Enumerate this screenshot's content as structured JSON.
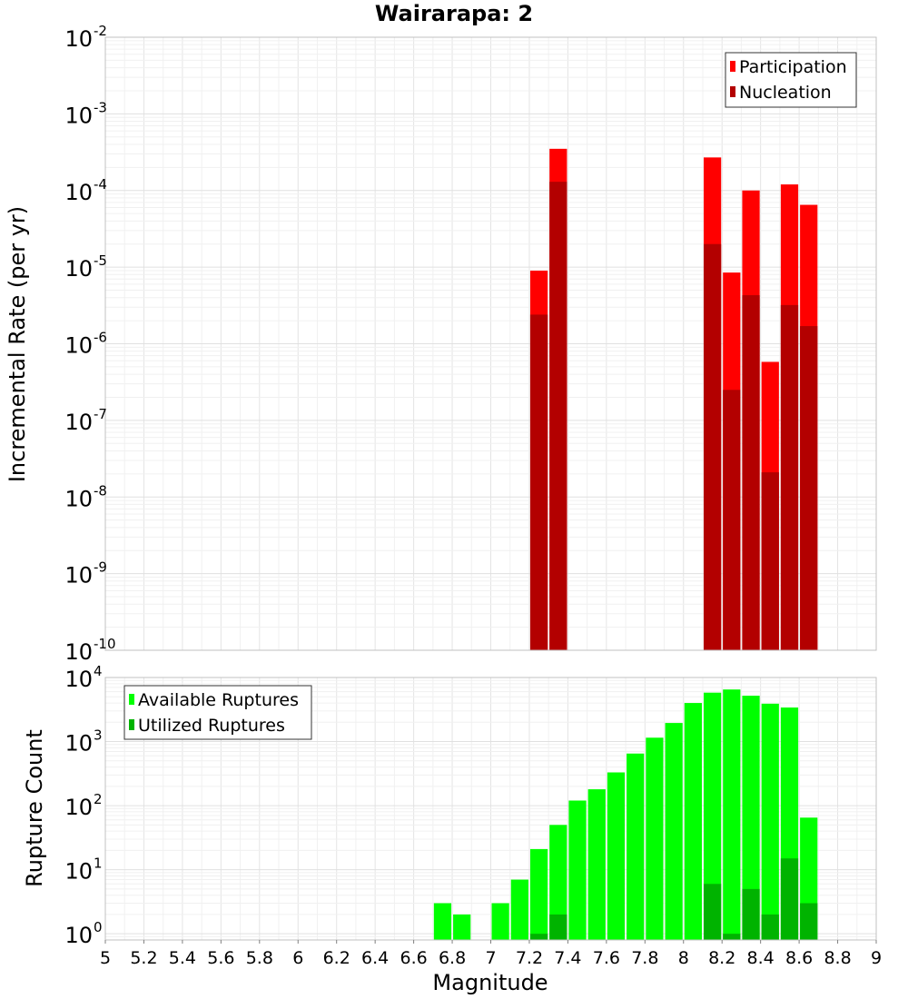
{
  "chart_data": [
    {
      "type": "bar",
      "title": "Wairarapa: 2",
      "xlabel": "",
      "ylabel": "Incremental Rate (per yr)",
      "yscale": "log",
      "ylim": [
        1e-10,
        0.01
      ],
      "xlim": [
        5,
        9
      ],
      "bar_width": 0.1,
      "legend_position": "top-right",
      "y_ticks": [
        {
          "base": "10",
          "exp": "-10",
          "value": 1e-10
        },
        {
          "base": "10",
          "exp": "-9",
          "value": 1e-09
        },
        {
          "base": "10",
          "exp": "-8",
          "value": 1e-08
        },
        {
          "base": "10",
          "exp": "-7",
          "value": 1e-07
        },
        {
          "base": "10",
          "exp": "-6",
          "value": 1e-06
        },
        {
          "base": "10",
          "exp": "-5",
          "value": 1e-05
        },
        {
          "base": "10",
          "exp": "-4",
          "value": 0.0001
        },
        {
          "base": "10",
          "exp": "-3",
          "value": 0.001
        },
        {
          "base": "10",
          "exp": "-2",
          "value": 0.01
        }
      ],
      "series": [
        {
          "name": "Participation",
          "color": "#ff0000",
          "x": [
            7.25,
            7.35,
            8.15,
            8.25,
            8.35,
            8.45,
            8.55,
            8.65
          ],
          "values": [
            9e-06,
            0.00035,
            0.00027,
            8.5e-06,
            0.0001,
            5.8e-07,
            0.00012,
            6.5e-05
          ]
        },
        {
          "name": "Nucleation",
          "color": "#b30000",
          "x": [
            7.25,
            7.35,
            8.15,
            8.25,
            8.35,
            8.45,
            8.55,
            8.65
          ],
          "values": [
            2.4e-06,
            0.00013,
            2e-05,
            2.5e-07,
            4.3e-06,
            2.1e-08,
            3.2e-06,
            1.7e-06
          ]
        }
      ]
    },
    {
      "type": "bar",
      "title": "",
      "xlabel": "Magnitude",
      "ylabel": "Rupture Count",
      "yscale": "log",
      "ylim": [
        0.8,
        10000
      ],
      "xlim": [
        5,
        9
      ],
      "bar_width": 0.1,
      "legend_position": "top-left",
      "x_ticks": [
        "5",
        "5.2",
        "5.4",
        "5.6",
        "5.8",
        "6",
        "6.2",
        "6.4",
        "6.6",
        "6.8",
        "7",
        "7.2",
        "7.4",
        "7.6",
        "7.8",
        "8",
        "8.2",
        "8.4",
        "8.6",
        "8.8",
        "9"
      ],
      "y_ticks": [
        {
          "base": "10",
          "exp": "0",
          "value": 1
        },
        {
          "base": "10",
          "exp": "1",
          "value": 10
        },
        {
          "base": "10",
          "exp": "2",
          "value": 100
        },
        {
          "base": "10",
          "exp": "3",
          "value": 1000
        },
        {
          "base": "10",
          "exp": "4",
          "value": 10000
        }
      ],
      "series": [
        {
          "name": "Available Ruptures",
          "color": "#00ff00",
          "x": [
            6.75,
            6.85,
            7.05,
            7.15,
            7.25,
            7.35,
            7.45,
            7.55,
            7.65,
            7.75,
            7.85,
            7.95,
            8.05,
            8.15,
            8.25,
            8.35,
            8.45,
            8.55,
            8.65
          ],
          "values": [
            3,
            2,
            3,
            7,
            21,
            50,
            120,
            180,
            330,
            650,
            1150,
            1950,
            4000,
            5800,
            6500,
            5200,
            3900,
            3400,
            65
          ]
        },
        {
          "name": "Utilized Ruptures",
          "color": "#00b300",
          "x": [
            7.25,
            7.35,
            8.15,
            8.25,
            8.35,
            8.45,
            8.55,
            8.65
          ],
          "values": [
            1,
            2,
            6,
            1,
            5,
            2,
            15,
            3
          ]
        }
      ]
    }
  ]
}
